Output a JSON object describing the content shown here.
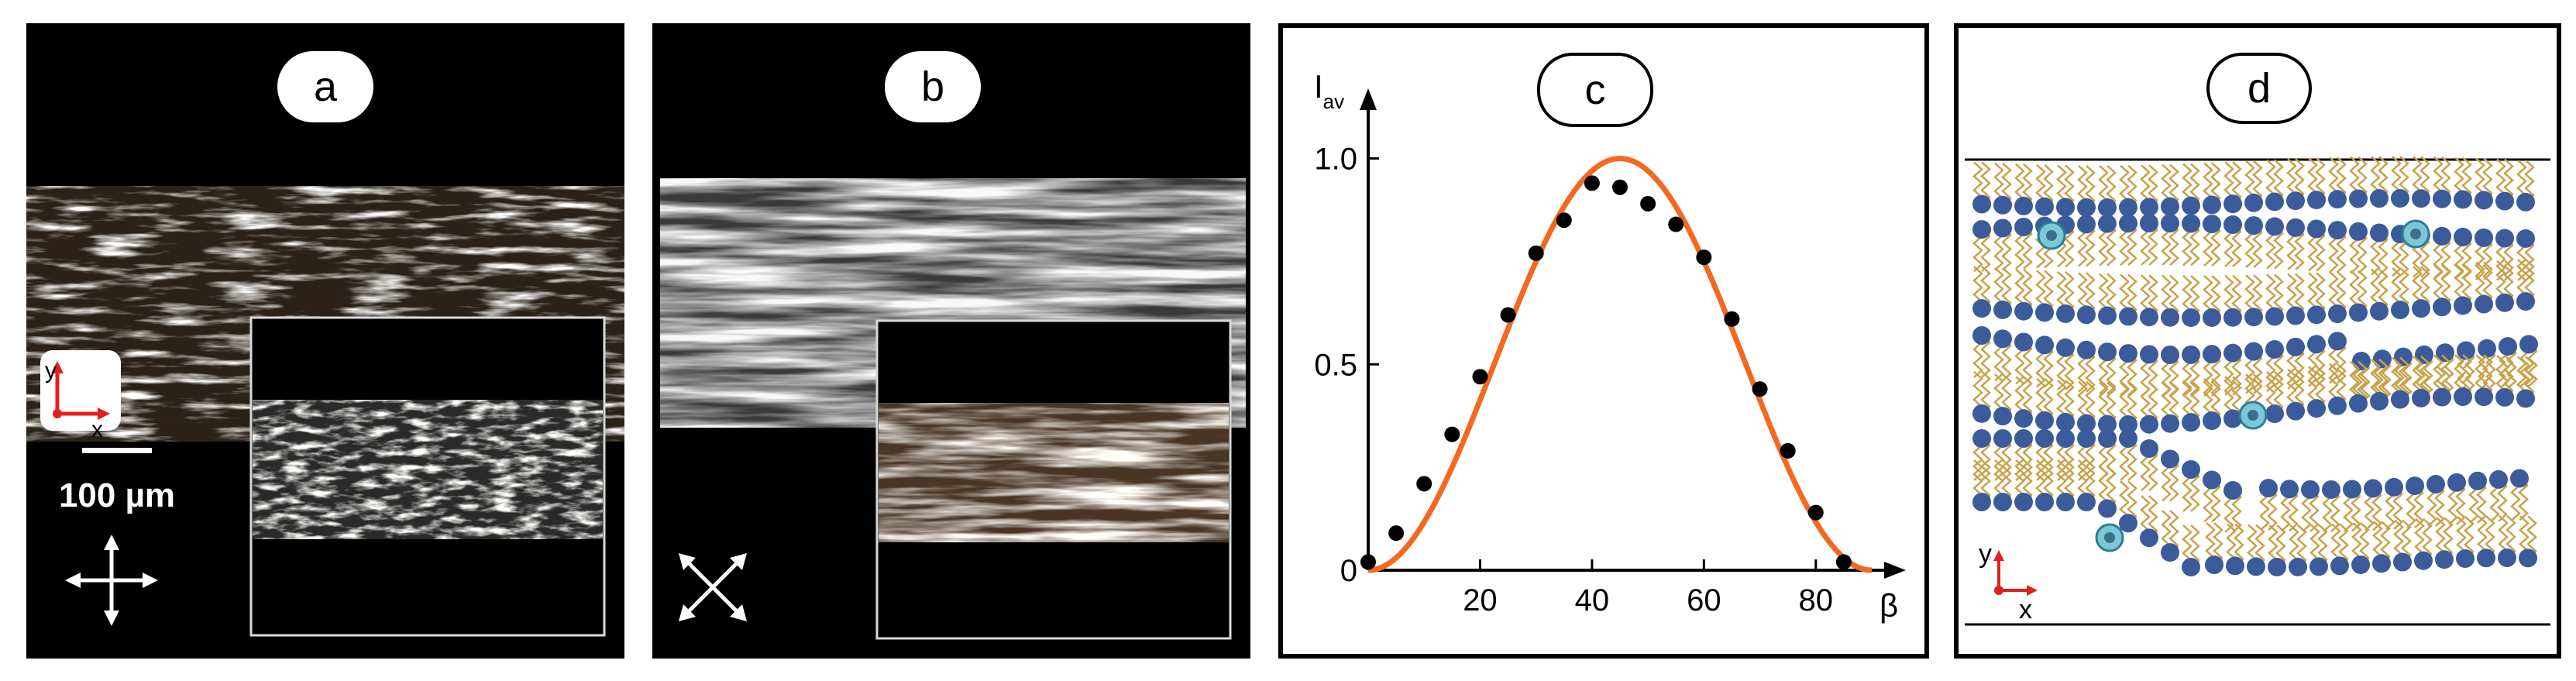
{
  "panels": {
    "a": {
      "label": "a",
      "scale_bar": "100 µm",
      "axis_y": "y",
      "axis_x": "x",
      "polarizer_icon": "crossed-polarizers-0deg-icon"
    },
    "b": {
      "label": "b",
      "polarizer_icon": "crossed-polarizers-45deg-icon"
    },
    "c": {
      "label": "c"
    },
    "d": {
      "label": "d",
      "axis_y": "y",
      "axis_x": "x"
    }
  },
  "colors": {
    "curve": "#f26a21",
    "points": "#000000",
    "lipid_head": "#3b5b9a",
    "lipid_tail": "#c8a24a",
    "particle": "#7cc7d6"
  },
  "chart_data": {
    "type": "scatter",
    "title": "",
    "xlabel": "β",
    "ylabel": "I",
    "ylabel_subscript": "av",
    "xlim": [
      0,
      90
    ],
    "ylim": [
      0,
      1.08
    ],
    "x_ticks": [
      20,
      40,
      60,
      80
    ],
    "y_ticks": [
      0,
      0.5,
      1.0
    ],
    "y_tick_labels": [
      "0",
      "0.5",
      "1.0"
    ],
    "points": {
      "x": [
        0,
        5,
        10,
        15,
        20,
        25,
        30,
        35,
        40,
        45,
        50,
        55,
        60,
        65,
        70,
        75,
        80,
        85
      ],
      "y": [
        0.02,
        0.09,
        0.21,
        0.33,
        0.47,
        0.62,
        0.77,
        0.85,
        0.94,
        0.93,
        0.89,
        0.84,
        0.76,
        0.61,
        0.44,
        0.29,
        0.14,
        0.02
      ]
    },
    "curve": {
      "function": "sin^2(2β)",
      "x_range": [
        0,
        90
      ]
    }
  }
}
